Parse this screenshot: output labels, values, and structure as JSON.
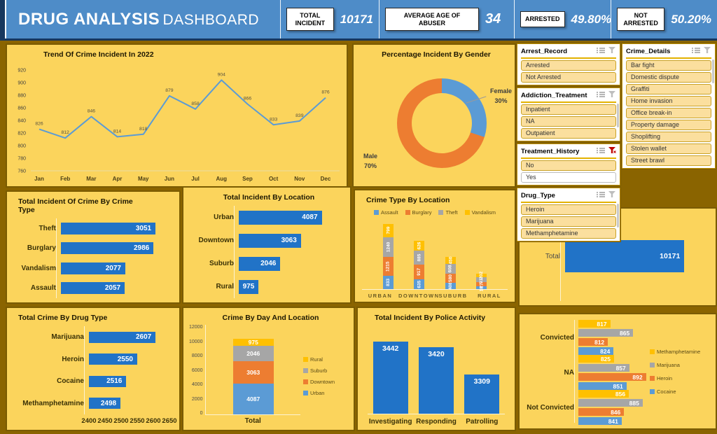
{
  "header": {
    "title_primary": "DRUG ANALYSIS",
    "title_secondary": "DASHBOARD",
    "kpis": [
      {
        "label": "TOTAL INCIDENT",
        "value": "10171"
      },
      {
        "label": "AVERAGE AGE OF ABUSER",
        "value": "34"
      },
      {
        "label": "ARRESTED",
        "value": "49.80%"
      },
      {
        "label": "NOT ARRESTED",
        "value": "50.20%"
      }
    ]
  },
  "slicers": [
    {
      "title": "Arrest_Record",
      "filter_active": false,
      "scrollbar": false,
      "items": [
        {
          "label": "Arrested",
          "selected": true
        },
        {
          "label": "Not Arrested",
          "selected": true
        }
      ]
    },
    {
      "title": "Addiction_Treatment",
      "filter_active": false,
      "scrollbar": true,
      "items": [
        {
          "label": "Inpatient",
          "selected": true
        },
        {
          "label": "NA",
          "selected": true
        },
        {
          "label": "Outpatient",
          "selected": true
        }
      ]
    },
    {
      "title": "Treatment_History",
      "filter_active": true,
      "scrollbar": false,
      "items": [
        {
          "label": "No",
          "selected": true
        },
        {
          "label": "Yes",
          "selected": false
        }
      ]
    },
    {
      "title": "Drug_Type",
      "filter_active": false,
      "scrollbar": true,
      "items": [
        {
          "label": "Heroin",
          "selected": true
        },
        {
          "label": "Marijuana",
          "selected": true
        },
        {
          "label": "Methamphetamine",
          "selected": true
        }
      ]
    },
    {
      "title": "Crime_Details",
      "filter_active": false,
      "scrollbar": true,
      "items": [
        {
          "label": "Bar fight",
          "selected": true
        },
        {
          "label": "Domestic dispute",
          "selected": true
        },
        {
          "label": "Graffiti",
          "selected": true
        },
        {
          "label": "Home invasion",
          "selected": true
        },
        {
          "label": "Office break-in",
          "selected": true
        },
        {
          "label": "Property damage",
          "selected": true
        },
        {
          "label": "Shoplifting",
          "selected": true
        },
        {
          "label": "Stolen wallet",
          "selected": true
        },
        {
          "label": "Street brawl",
          "selected": true
        }
      ]
    }
  ],
  "chart_data": [
    {
      "type": "line",
      "title": "Trend Of Crime Incident In 2022",
      "categories": [
        "Jan",
        "Feb",
        "Mar",
        "Apr",
        "May",
        "Jun",
        "Jul",
        "Aug",
        "Sep",
        "Oct",
        "Nov",
        "Dec"
      ],
      "values": [
        826,
        812,
        846,
        814,
        818,
        879,
        858,
        904,
        866,
        833,
        839,
        876
      ],
      "ylim": [
        760,
        920
      ],
      "ytick": 20,
      "line_color": "#5B9BD5"
    },
    {
      "type": "donut",
      "title": "Percentage Incident By Gender",
      "slices": [
        {
          "label": "Female",
          "pct": 30,
          "color": "#5B9BD5"
        },
        {
          "label": "Male",
          "pct": 70,
          "color": "#ED7D31"
        }
      ]
    },
    {
      "type": "barh",
      "title": "Total Incident Of Crime By Crime Type",
      "categories": [
        "Theft",
        "Burglary",
        "Vandalism",
        "Assault"
      ],
      "values": [
        3051,
        2986,
        2077,
        2057
      ],
      "xlim": [
        0,
        3500
      ]
    },
    {
      "type": "barh",
      "title": "Total Incident By Location",
      "categories": [
        "Urban",
        "Downtown",
        "Suburb",
        "Rural"
      ],
      "values": [
        4087,
        3063,
        2046,
        975
      ],
      "xlim": [
        0,
        5000
      ]
    },
    {
      "type": "stacked-col",
      "title": "Crime Type By Location",
      "categories": [
        "URBAN",
        "DOWNTOWN",
        "SUBURB",
        "RURAL"
      ],
      "ylim": [
        0,
        4500
      ],
      "series": [
        {
          "name": "Assault",
          "color": "#5B9BD5",
          "values": [
            833,
            635,
            408,
            181
          ]
        },
        {
          "name": "Burglary",
          "color": "#ED7D31",
          "values": [
            1215,
            917,
            580,
            274
          ]
        },
        {
          "name": "Theft",
          "color": "#A6A6A6",
          "values": [
            1240,
            885,
            608,
            318
          ]
        },
        {
          "name": "Vandalism",
          "color": "#FFC000",
          "values": [
            799,
            626,
            450,
            202
          ]
        }
      ]
    },
    {
      "type": "barh",
      "title": "",
      "categories": [
        "Total"
      ],
      "values": [
        10171
      ],
      "xlim": [
        0,
        12000
      ]
    },
    {
      "type": "barh",
      "title": "Total Crime By Drug Type",
      "categories": [
        "Marijuana",
        "Heroin",
        "Cocaine",
        "Methamphetamine"
      ],
      "values": [
        2607,
        2550,
        2516,
        2498
      ],
      "xlim": [
        2400,
        2650
      ],
      "xticks": [
        2400,
        2450,
        2500,
        2550,
        2600,
        2650
      ]
    },
    {
      "type": "stacked-col-single",
      "title": "Crime By Day And Location",
      "categories": [
        "Total"
      ],
      "ylim": [
        0,
        12000
      ],
      "yticks": [
        0,
        2000,
        4000,
        6000,
        8000,
        10000,
        12000
      ],
      "series": [
        {
          "name": "Urban",
          "color": "#5B9BD5",
          "values": [
            4087
          ]
        },
        {
          "name": "Downtown",
          "color": "#ED7D31",
          "values": [
            3063
          ]
        },
        {
          "name": "Suburb",
          "color": "#A6A6A6",
          "values": [
            2046
          ]
        },
        {
          "name": "Rural",
          "color": "#FFC000",
          "values": [
            975
          ]
        }
      ],
      "legend": [
        "Rural",
        "Suburb",
        "Downtown",
        "Urban"
      ]
    },
    {
      "type": "col",
      "title": "Total Incident By Police Activity",
      "categories": [
        "Investigating",
        "Responding",
        "Patrolling"
      ],
      "values": [
        3442,
        3420,
        3309
      ],
      "ylim": [
        3150,
        3500
      ]
    },
    {
      "type": "clustered-barh",
      "title": "",
      "groups": [
        "Convicted",
        "NA",
        "Not Convicted"
      ],
      "xlim": [
        750,
        900
      ],
      "series": [
        {
          "name": "Methamphetamine",
          "color": "#FFC000",
          "values": [
            817,
            825,
            856
          ]
        },
        {
          "name": "Marijuana",
          "color": "#A6A6A6",
          "values": [
            865,
            857,
            885
          ]
        },
        {
          "name": "Heroin",
          "color": "#ED7D31",
          "values": [
            812,
            892,
            846
          ]
        },
        {
          "name": "Cocaine",
          "color": "#5B9BD5",
          "values": [
            824,
            851,
            841
          ]
        }
      ]
    }
  ],
  "colors": {
    "header_bg": "#4E8CC8",
    "page_bg": "#8A6400",
    "panel_bg": "#FBD45C",
    "bar_blue": "#2173C7",
    "slicer_active_filter": "#C00000",
    "slicer_inactive_icon": "#BDBDBD"
  }
}
